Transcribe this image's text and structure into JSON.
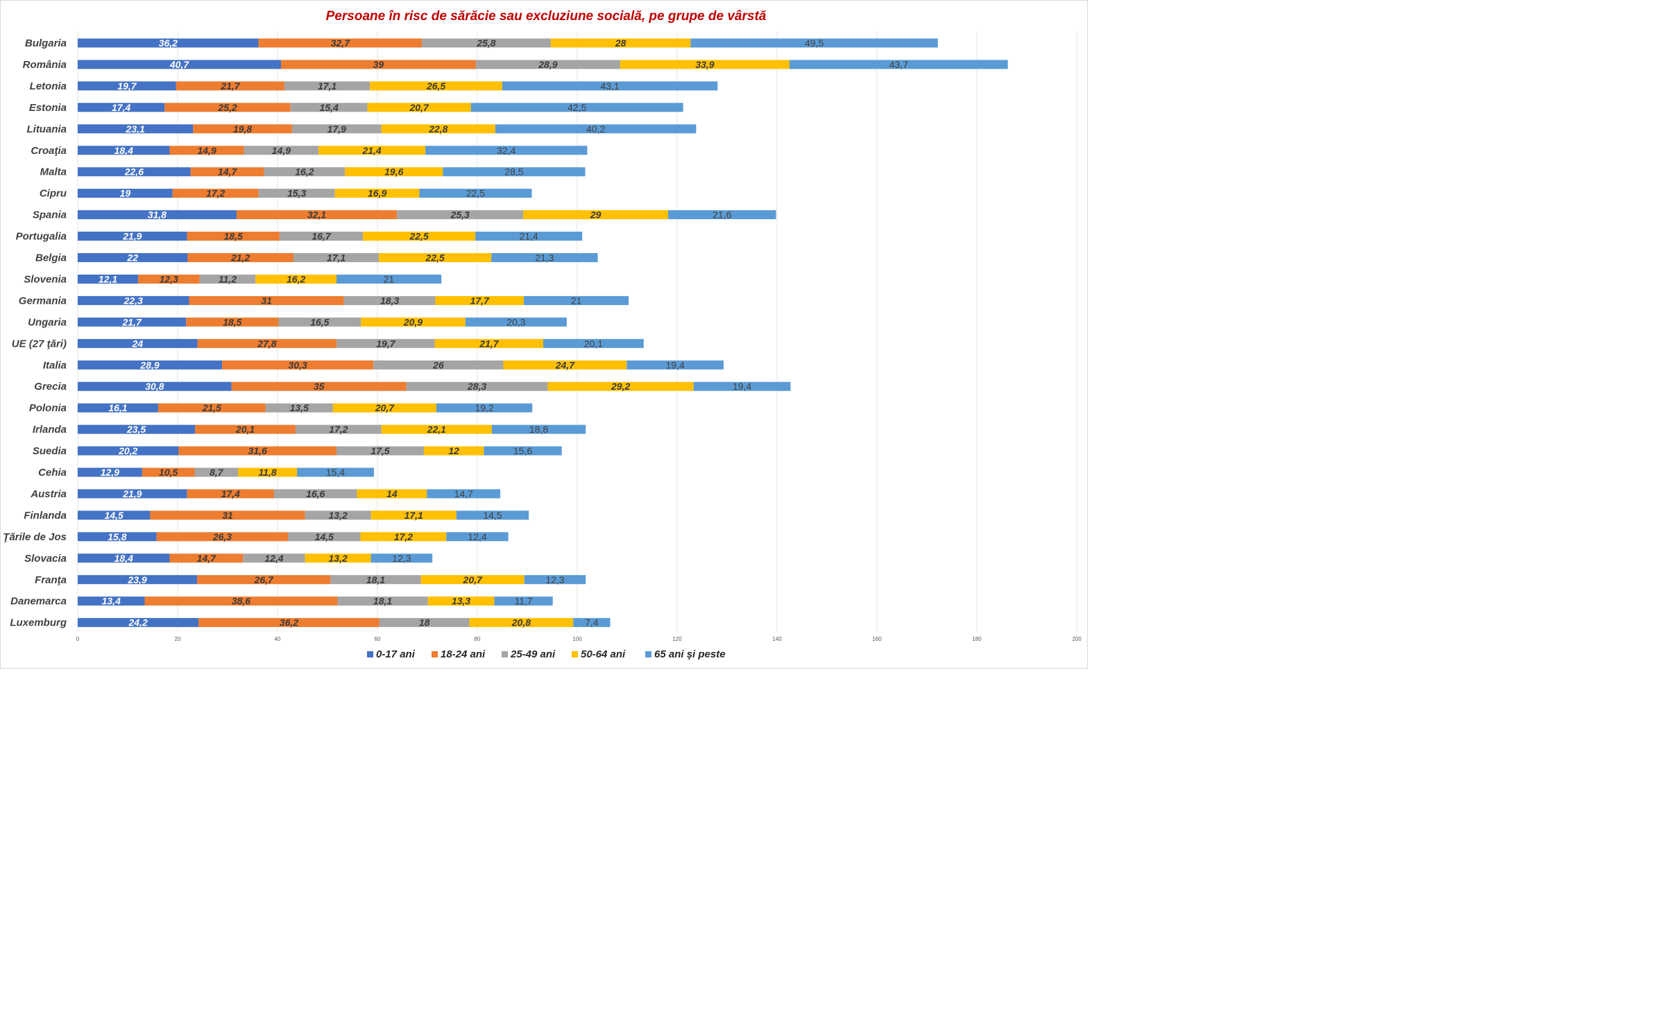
{
  "chart_data": {
    "type": "bar",
    "orientation": "horizontal",
    "stacked": true,
    "title": "Persoane în risc de sărăcie sau excluziune socială, pe grupe de vârstă",
    "title_color": "#c00000",
    "categories": [
      "Bulgaria",
      "România",
      "Letonia",
      "Estonia",
      "Lituania",
      "Croaţia",
      "Malta",
      "Cipru",
      "Spania",
      "Portugalia",
      "Belgia",
      "Slovenia",
      "Germania",
      "Ungaria",
      "UE (27 ţări)",
      "Italia",
      "Grecia",
      "Polonia",
      "Irlanda",
      "Suedia",
      "Cehia",
      "Austria",
      "Finlanda",
      "Ţările de Jos",
      "Slovacia",
      "Franţa",
      "Danemarca",
      "Luxemburg"
    ],
    "series": [
      {
        "name": "0-17 ani",
        "color": "#4472c4",
        "label_color": "#ffffff",
        "label_style": "bold-italic",
        "values": [
          36.2,
          40.7,
          19.7,
          17.4,
          23.1,
          18.4,
          22.6,
          19,
          31.8,
          21.9,
          22,
          12.1,
          22.3,
          21.7,
          24,
          28.9,
          30.8,
          16.1,
          23.5,
          20.2,
          12.9,
          21.9,
          14.5,
          15.8,
          18.4,
          23.9,
          13.4,
          24.2
        ],
        "labels": [
          "36,2",
          "40,7",
          "19,7",
          "17,4",
          "23,1",
          "18,4",
          "22,6",
          "19",
          "31,8",
          "21,9",
          "22",
          "12,1",
          "22,3",
          "21,7",
          "24",
          "28,9",
          "30,8",
          "16,1",
          "23,5",
          "20,2",
          "12,9",
          "21,9",
          "14,5",
          "15,8",
          "18,4",
          "23,9",
          "13,4",
          "24,2"
        ]
      },
      {
        "name": "18-24 ani",
        "color": "#ed7d31",
        "label_color": "#3a3a3a",
        "label_style": "bold-italic",
        "values": [
          32.7,
          39,
          21.7,
          25.2,
          19.8,
          14.9,
          14.7,
          17.2,
          32.1,
          18.5,
          21.2,
          12.3,
          31,
          18.5,
          27.8,
          30.3,
          35,
          21.5,
          20.1,
          31.6,
          10.5,
          17.4,
          31,
          26.3,
          14.7,
          26.7,
          38.6,
          36.2
        ],
        "labels": [
          "32,7",
          "39",
          "21,7",
          "25,2",
          "19,8",
          "14,9",
          "14,7",
          "17,2",
          "32,1",
          "18,5",
          "21,2",
          "12,3",
          "31",
          "18,5",
          "27,8",
          "30,3",
          "35",
          "21,5",
          "20,1",
          "31,6",
          "10,5",
          "17,4",
          "31",
          "26,3",
          "14,7",
          "26,7",
          "38,6",
          "36,2"
        ]
      },
      {
        "name": "25-49 ani",
        "color": "#a5a5a5",
        "label_color": "#3a3a3a",
        "label_style": "bold-italic",
        "values": [
          25.8,
          28.9,
          17.1,
          15.4,
          17.9,
          14.9,
          16.2,
          15.3,
          25.3,
          16.7,
          17.1,
          11.2,
          18.3,
          16.5,
          19.7,
          26,
          28.3,
          13.5,
          17.2,
          17.5,
          8.7,
          16.6,
          13.2,
          14.5,
          12.4,
          18.1,
          18.1,
          18
        ],
        "labels": [
          "25,8",
          "28,9",
          "17,1",
          "15,4",
          "17,9",
          "14,9",
          "16,2",
          "15,3",
          "25,3",
          "16,7",
          "17,1",
          "11,2",
          "18,3",
          "16,5",
          "19,7",
          "26",
          "28,3",
          "13,5",
          "17,2",
          "17,5",
          "8,7",
          "16,6",
          "13,2",
          "14,5",
          "12,4",
          "18,1",
          "18,1",
          "18"
        ]
      },
      {
        "name": "50-64 ani",
        "color": "#ffc000",
        "label_color": "#3a3a3a",
        "label_style": "bold-italic",
        "values": [
          28,
          33.9,
          26.5,
          20.7,
          22.8,
          21.4,
          19.6,
          16.9,
          29,
          22.5,
          22.5,
          16.2,
          17.7,
          20.9,
          21.7,
          24.7,
          29.2,
          20.7,
          22.1,
          12,
          11.8,
          14,
          17.1,
          17.2,
          13.2,
          20.7,
          13.3,
          20.8
        ],
        "labels": [
          "28",
          "33,9",
          "26,5",
          "20,7",
          "22,8",
          "21,4",
          "19,6",
          "16,9",
          "29",
          "22,5",
          "22,5",
          "16,2",
          "17,7",
          "20,9",
          "21,7",
          "24,7",
          "29,2",
          "20,7",
          "22,1",
          "12",
          "11,8",
          "14",
          "17,1",
          "17,2",
          "13,2",
          "20,7",
          "13,3",
          "20,8"
        ]
      },
      {
        "name": "65 ani şi peste",
        "color": "#5b9bd5",
        "label_color": "#404040",
        "label_style": "regular",
        "values": [
          49.5,
          43.7,
          43.1,
          42.5,
          40.2,
          32.4,
          28.5,
          22.5,
          21.6,
          21.4,
          21.3,
          21,
          21,
          20.3,
          20.1,
          19.4,
          19.4,
          19.2,
          18.8,
          15.6,
          15.4,
          14.7,
          14.5,
          12.4,
          12.3,
          12.3,
          11.7,
          7.4
        ],
        "labels": [
          "49,5",
          "43,7",
          "43,1",
          "42,5",
          "40,2",
          "32,4",
          "28,5",
          "22,5",
          "21,6",
          "21,4",
          "21,3",
          "21",
          "21",
          "20,3",
          "20,1",
          "19,4",
          "19,4",
          "19,2",
          "18,8",
          "15,6",
          "15,4",
          "14,7",
          "14,5",
          "12,4",
          "12,3",
          "12,3",
          "11,7",
          "7,4"
        ]
      }
    ],
    "x_axis": {
      "min": 0,
      "max": 200,
      "step": 20,
      "tick_labels": [
        "0",
        "20",
        "40",
        "60",
        "80",
        "100",
        "120",
        "140",
        "160",
        "180",
        "200"
      ]
    },
    "grid": "vertical",
    "legend": "bottom"
  }
}
